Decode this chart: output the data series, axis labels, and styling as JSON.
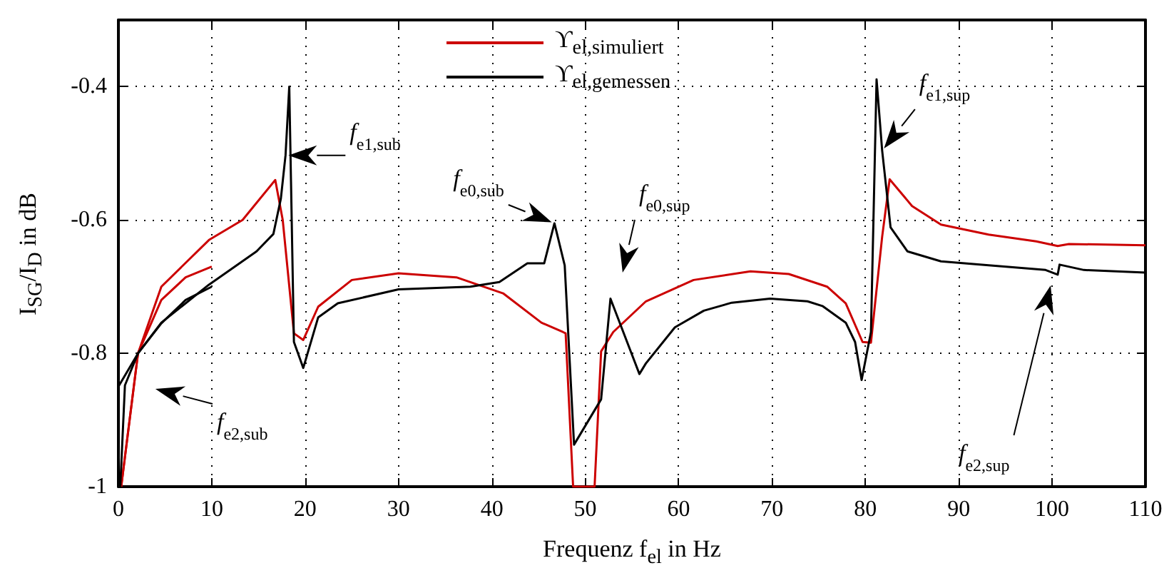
{
  "chart_data": {
    "type": "line",
    "xlabel": "Frequenz f$_{el}$ in Hz",
    "ylabel": "I$_{SG}$/I$_{D}$ in dB",
    "xlim": [
      0,
      110
    ],
    "xticks": [
      0,
      10,
      20,
      30,
      40,
      50,
      60,
      70,
      80,
      90,
      100,
      110
    ],
    "ylim": [
      -1,
      -0.3
    ],
    "yticks": [
      -1,
      -0.8,
      -0.6,
      -0.4
    ],
    "grid": true,
    "legend": "top",
    "marker": "none",
    "line_style": "solid",
    "series": [
      {
        "name": "ϒ$_{el,simuliert}$",
        "color": "#cc0000",
        "x": [
          0.3,
          2.1,
          4.6,
          9.7,
          13.3,
          16.8,
          17.6,
          18.8,
          19.8,
          21.4,
          25,
          30,
          36.2,
          41.2,
          45.3,
          47.6,
          47.9,
          48.7,
          51.0,
          51.7,
          53,
          56.5,
          61.6,
          67.7,
          71.8,
          75.9,
          77.9,
          79.7,
          80.6,
          81.8,
          82.6,
          85,
          88.1,
          93.2,
          98.3,
          100.6,
          101.8,
          110
        ],
        "values": [
          -1,
          -0.8,
          -0.7,
          -0.63,
          -0.6,
          -0.54,
          -0.6,
          -0.77,
          -0.78,
          -0.73,
          -0.69,
          -0.68,
          -0.686,
          -0.71,
          -0.754,
          -0.768,
          -0.77,
          -1,
          -1,
          -0.797,
          -0.768,
          -0.722,
          -0.69,
          -0.677,
          -0.681,
          -0.7,
          -0.725,
          -0.783,
          -0.784,
          -0.625,
          -0.539,
          -0.579,
          -0.607,
          -0.622,
          -0.632,
          -0.639,
          -0.636,
          -0.638
        ]
      },
      {
        "color": "#cc0000",
        "x": [
          0.3,
          2.1,
          4.6,
          7.2,
          10
        ],
        "values": [
          -1,
          -0.8,
          -0.72,
          -0.686,
          -0.67
        ]
      },
      {
        "name": "ϒ$_{el,gemessen}$",
        "color": "#000000",
        "x": [
          0,
          2.1,
          4.6,
          9.7,
          14.8,
          16.6,
          17.4,
          17.9,
          18.3,
          18.8,
          19.8,
          21.4,
          23.5,
          30,
          37.7,
          40.8,
          43.8,
          45.6,
          46.7,
          47.8,
          48.8,
          51.7,
          52.7,
          55.8,
          56.5,
          59.6,
          62.7,
          65.7,
          69.8,
          73.8,
          75.4,
          77.9,
          78.9,
          79.6,
          80.6,
          81.2,
          81.8,
          82.7,
          84.5,
          88.1,
          93.2,
          99.3,
          100.6,
          100.8,
          103.4,
          110
        ],
        "values": [
          -0.85,
          -0.8,
          -0.754,
          -0.697,
          -0.647,
          -0.621,
          -0.568,
          -0.503,
          -0.4,
          -0.783,
          -0.822,
          -0.746,
          -0.725,
          -0.704,
          -0.7,
          -0.693,
          -0.665,
          -0.665,
          -0.605,
          -0.668,
          -0.937,
          -0.869,
          -0.718,
          -0.831,
          -0.815,
          -0.761,
          -0.736,
          -0.724,
          -0.718,
          -0.722,
          -0.729,
          -0.754,
          -0.783,
          -0.84,
          -0.768,
          -0.389,
          -0.496,
          -0.611,
          -0.647,
          -0.662,
          -0.668,
          -0.675,
          -0.682,
          -0.667,
          -0.675,
          -0.679
        ]
      },
      {
        "color": "#000000",
        "x": [
          0.2,
          0.7,
          2.1,
          4.6,
          7.2,
          10
        ],
        "values": [
          -1,
          -0.848,
          -0.8,
          -0.755,
          -0.72,
          -0.7
        ]
      }
    ],
    "annotations": [
      {
        "text": "f$_{e1,sub}$",
        "x": 17.9,
        "y": -0.503
      },
      {
        "text": "f$_{e0,sub}$",
        "x": 46.7,
        "y": -0.605
      },
      "f$_{e0,sup}$",
      {
        "text": "f$_{e1,sup}$",
        "x": 81.8,
        "y": -0.496
      },
      "f$_{e2,sub}$",
      "f$_{e2,sup}$"
    ]
  }
}
